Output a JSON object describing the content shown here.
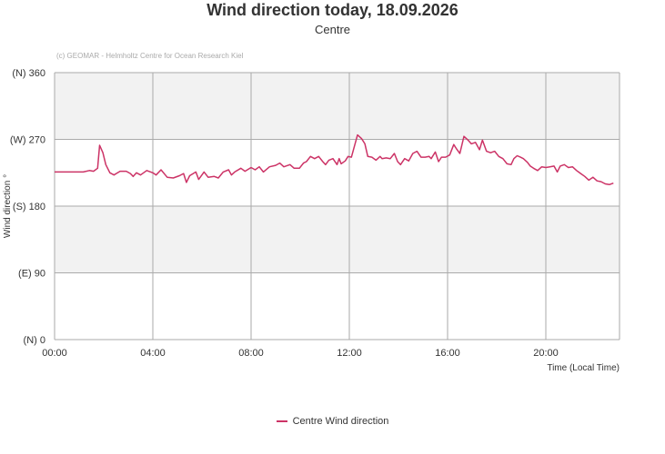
{
  "chart_data": {
    "type": "line",
    "title": "Wind direction today, 18.09.2026",
    "subtitle": "Centre",
    "credit": "(c) GEOMAR - Helmholtz Centre for Ocean Research Kiel",
    "xlabel": "Time (Local Time)",
    "ylabel": "Wind direction °",
    "xlim": [
      "00:00",
      "23:00"
    ],
    "ylim": [
      0,
      360
    ],
    "x_ticks": [
      "00:00",
      "04:00",
      "08:00",
      "12:00",
      "16:00",
      "20:00"
    ],
    "y_ticks": [
      {
        "value": 0,
        "label": "(N) 0"
      },
      {
        "value": 90,
        "label": "(E) 90"
      },
      {
        "value": 180,
        "label": "(S) 180"
      },
      {
        "value": 270,
        "label": "(W) 270"
      },
      {
        "value": 360,
        "label": "(N) 360"
      }
    ],
    "grid": true,
    "legend_position": "bottom-center",
    "series": [
      {
        "name": "Centre Wind direction",
        "color": "#cc3366",
        "points": [
          [
            "00:00",
            226
          ],
          [
            "00:40",
            226
          ],
          [
            "01:10",
            226
          ],
          [
            "01:25",
            228
          ],
          [
            "01:35",
            227
          ],
          [
            "01:45",
            231
          ],
          [
            "01:50",
            262
          ],
          [
            "01:58",
            252
          ],
          [
            "02:05",
            236
          ],
          [
            "02:15",
            225
          ],
          [
            "02:25",
            222
          ],
          [
            "02:40",
            227
          ],
          [
            "02:55",
            227
          ],
          [
            "03:05",
            224
          ],
          [
            "03:12",
            220
          ],
          [
            "03:20",
            225
          ],
          [
            "03:30",
            222
          ],
          [
            "03:45",
            228
          ],
          [
            "04:00",
            225
          ],
          [
            "04:08",
            222
          ],
          [
            "04:20",
            229
          ],
          [
            "04:35",
            219
          ],
          [
            "04:50",
            218
          ],
          [
            "05:05",
            221
          ],
          [
            "05:15",
            224
          ],
          [
            "05:22",
            212
          ],
          [
            "05:30",
            221
          ],
          [
            "05:45",
            226
          ],
          [
            "05:52",
            216
          ],
          [
            "06:05",
            226
          ],
          [
            "06:15",
            219
          ],
          [
            "06:30",
            220
          ],
          [
            "06:40",
            218
          ],
          [
            "06:52",
            226
          ],
          [
            "07:05",
            229
          ],
          [
            "07:12",
            222
          ],
          [
            "07:20",
            226
          ],
          [
            "07:35",
            231
          ],
          [
            "07:45",
            227
          ],
          [
            "08:00",
            232
          ],
          [
            "08:10",
            229
          ],
          [
            "08:20",
            233
          ],
          [
            "08:30",
            226
          ],
          [
            "08:45",
            233
          ],
          [
            "09:00",
            235
          ],
          [
            "09:10",
            238
          ],
          [
            "09:20",
            233
          ],
          [
            "09:35",
            236
          ],
          [
            "09:45",
            231
          ],
          [
            "09:58",
            231
          ],
          [
            "10:08",
            238
          ],
          [
            "10:15",
            240
          ],
          [
            "10:25",
            247
          ],
          [
            "10:35",
            244
          ],
          [
            "10:45",
            247
          ],
          [
            "10:55",
            240
          ],
          [
            "11:02",
            236
          ],
          [
            "11:10",
            242
          ],
          [
            "11:20",
            244
          ],
          [
            "11:30",
            236
          ],
          [
            "11:35",
            244
          ],
          [
            "11:40",
            237
          ],
          [
            "11:50",
            241
          ],
          [
            "11:57",
            247
          ],
          [
            "12:05",
            246
          ],
          [
            "12:20",
            276
          ],
          [
            "12:30",
            271
          ],
          [
            "12:38",
            264
          ],
          [
            "12:45",
            247
          ],
          [
            "12:55",
            246
          ],
          [
            "13:05",
            242
          ],
          [
            "13:15",
            247
          ],
          [
            "13:20",
            244
          ],
          [
            "13:30",
            245
          ],
          [
            "13:40",
            244
          ],
          [
            "13:50",
            251
          ],
          [
            "13:58",
            240
          ],
          [
            "14:05",
            236
          ],
          [
            "14:15",
            244
          ],
          [
            "14:25",
            241
          ],
          [
            "14:35",
            251
          ],
          [
            "14:45",
            254
          ],
          [
            "14:55",
            246
          ],
          [
            "15:05",
            246
          ],
          [
            "15:15",
            247
          ],
          [
            "15:20",
            244
          ],
          [
            "15:30",
            253
          ],
          [
            "15:38",
            240
          ],
          [
            "15:45",
            246
          ],
          [
            "15:55",
            246
          ],
          [
            "16:05",
            249
          ],
          [
            "16:15",
            263
          ],
          [
            "16:22",
            257
          ],
          [
            "16:30",
            251
          ],
          [
            "16:40",
            274
          ],
          [
            "16:50",
            269
          ],
          [
            "16:58",
            264
          ],
          [
            "17:08",
            266
          ],
          [
            "17:18",
            256
          ],
          [
            "17:25",
            269
          ],
          [
            "17:35",
            254
          ],
          [
            "17:45",
            252
          ],
          [
            "17:55",
            254
          ],
          [
            "18:05",
            247
          ],
          [
            "18:15",
            244
          ],
          [
            "18:25",
            237
          ],
          [
            "18:35",
            236
          ],
          [
            "18:42",
            244
          ],
          [
            "18:50",
            248
          ],
          [
            "18:58",
            246
          ],
          [
            "19:05",
            244
          ],
          [
            "19:15",
            239
          ],
          [
            "19:22",
            234
          ],
          [
            "19:30",
            231
          ],
          [
            "19:40",
            228
          ],
          [
            "19:50",
            233
          ],
          [
            "20:00",
            232
          ],
          [
            "20:10",
            233
          ],
          [
            "20:20",
            234
          ],
          [
            "20:28",
            226
          ],
          [
            "20:35",
            234
          ],
          [
            "20:45",
            236
          ],
          [
            "20:55",
            232
          ],
          [
            "21:05",
            233
          ],
          [
            "21:15",
            228
          ],
          [
            "21:25",
            224
          ],
          [
            "21:35",
            220
          ],
          [
            "21:45",
            215
          ],
          [
            "21:55",
            219
          ],
          [
            "22:05",
            214
          ],
          [
            "22:15",
            213
          ],
          [
            "22:25",
            210
          ],
          [
            "22:35",
            209
          ],
          [
            "22:45",
            211
          ]
        ]
      }
    ]
  }
}
